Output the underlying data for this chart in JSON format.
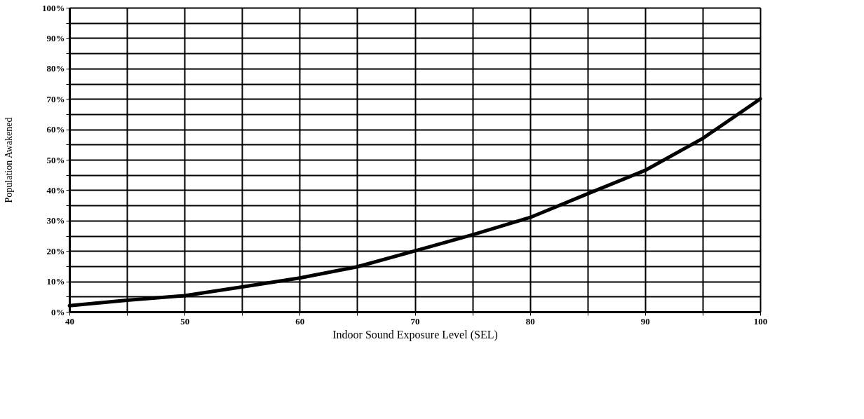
{
  "chart_data": {
    "type": "line",
    "xlabel": "Indoor Sound Exposure Level (SEL)",
    "ylabel": "Population Awakened",
    "x": [
      40,
      45,
      50,
      55,
      60,
      65,
      70,
      75,
      80,
      85,
      90,
      95,
      100
    ],
    "series": [
      {
        "color": "#000000",
        "values": [
          2,
          3.8,
          5.3,
          8.2,
          11.1,
          14.8,
          20,
          25.3,
          31,
          38.8,
          46.5,
          57,
          70
        ]
      }
    ],
    "xlim": [
      40,
      100
    ],
    "xticks": [
      40,
      {
        "value": 45,
        "label": null
      },
      50,
      {
        "value": 55,
        "label": null
      },
      60,
      {
        "value": 65,
        "label": null
      },
      70,
      {
        "value": 75,
        "label": null
      },
      80,
      {
        "value": 85,
        "label": null
      },
      90,
      {
        "value": 95,
        "label": null
      },
      100
    ],
    "ylim": [
      0,
      100
    ],
    "yticks": [
      {
        "value": 0,
        "label": "0%"
      },
      {
        "value": 5,
        "label": null
      },
      {
        "value": 10,
        "label": "10%"
      },
      {
        "value": 15,
        "label": null
      },
      {
        "value": 20,
        "label": "20%"
      },
      {
        "value": 25,
        "label": null
      },
      {
        "value": 30,
        "label": "30%"
      },
      {
        "value": 35,
        "label": null
      },
      {
        "value": 40,
        "label": "40%"
      },
      {
        "value": 45,
        "label": null
      },
      {
        "value": 50,
        "label": "50%"
      },
      {
        "value": 55,
        "label": null
      },
      {
        "value": 60,
        "label": "60%"
      },
      {
        "value": 65,
        "label": null
      },
      {
        "value": 70,
        "label": "70%"
      },
      {
        "value": 75,
        "label": null
      },
      {
        "value": 80,
        "label": "80%"
      },
      {
        "value": 85,
        "label": null
      },
      {
        "value": 90,
        "label": "90%"
      },
      {
        "value": 95,
        "label": null
      },
      {
        "value": 100,
        "label": "100%"
      }
    ],
    "grid": true,
    "legend": false,
    "marker": "none",
    "line_style": "solid"
  }
}
